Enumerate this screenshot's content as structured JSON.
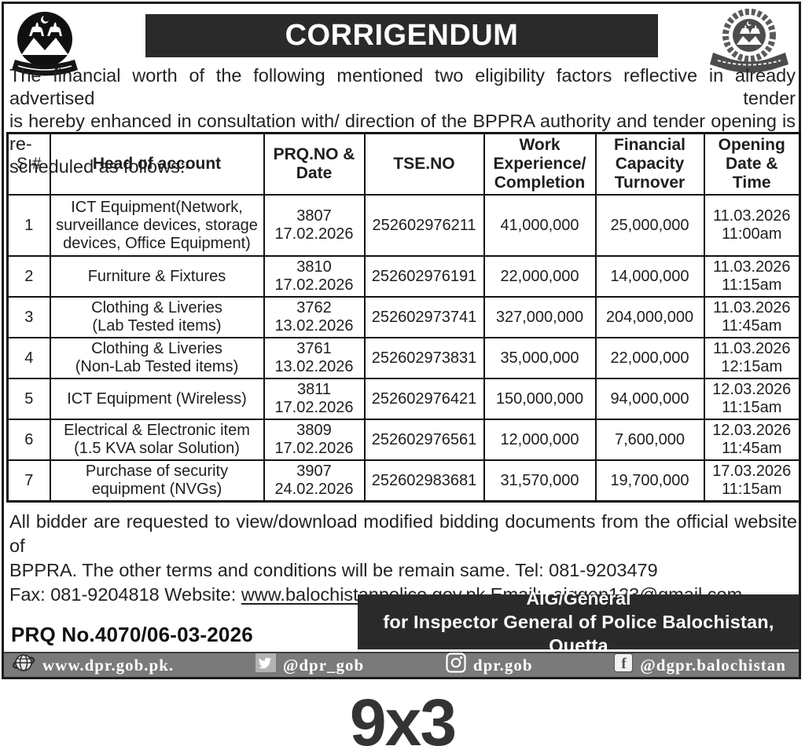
{
  "title": "CORRIGENDUM",
  "intro": {
    "line1": "The financial worth of the following mentioned two eligibility factors reflective in already advertised tender",
    "line2": "is hereby enhanced in consultation with/ direction of the BPPRA authority and tender opening is re-",
    "line3": "scheduled as follows:-"
  },
  "table": {
    "columns": {
      "sno": "S.#",
      "head": "Head of account",
      "prq": "PRQ.NO &\nDate",
      "tse": "TSE.NO",
      "work": "Work\nExperience/\nCompletion",
      "fin": "Financial\nCapacity\nTurnover",
      "open": "Opening\nDate &\nTime"
    },
    "rows": [
      {
        "sno": "1",
        "head": "ICT Equipment(Network,\nsurveillance devices, storage\ndevices, Office Equipment)",
        "prq": "3807\n17.02.2026",
        "tse": "252602976211",
        "work": "41,000,000",
        "fin": "25,000,000",
        "open": "11.03.2026\n11:00am"
      },
      {
        "sno": "2",
        "head": "Furniture & Fixtures",
        "prq": "3810\n17.02.2026",
        "tse": "252602976191",
        "work": "22,000,000",
        "fin": "14,000,000",
        "open": "11.03.2026\n11:15am"
      },
      {
        "sno": "3",
        "head": "Clothing & Liveries\n(Lab Tested items)",
        "prq": "3762\n13.02.2026",
        "tse": "252602973741",
        "work": "327,000,000",
        "fin": "204,000,000",
        "open": "11.03.2026\n11:45am"
      },
      {
        "sno": "4",
        "head": "Clothing & Liveries\n(Non-Lab Tested items)",
        "prq": "3761\n13.02.2026",
        "tse": "252602973831",
        "work": "35,000,000",
        "fin": "22,000,000",
        "open": "11.03.2026\n12:15am"
      },
      {
        "sno": "5",
        "head": "ICT Equipment (Wireless)",
        "prq": "3811\n17.02.2026",
        "tse": "252602976421",
        "work": "150,000,000",
        "fin": "94,000,000",
        "open": "12.03.2026\n11:15am"
      },
      {
        "sno": "6",
        "head": "Electrical & Electronic item\n(1.5 KVA solar Solution)",
        "prq": "3809\n17.02.2026",
        "tse": "252602976561",
        "work": "12,000,000",
        "fin": "7,600,000",
        "open": "12.03.2026\n11:45am"
      },
      {
        "sno": "7",
        "head": "Purchase of security\nequipment (NVGs)",
        "prq": "3907\n24.02.2026",
        "tse": "252602983681",
        "work": "31,570,000",
        "fin": "19,700,000",
        "open": "17.03.2026\n11:15am"
      }
    ]
  },
  "notice": {
    "line1": "All bidder are requested to view/download modified bidding documents from the official website of",
    "line2": "BPPRA. The other terms and conditions will be remain same. Tel: 081-9203479",
    "fax_prefix": "Fax: 081-9204818  Website: ",
    "website": "www.balochistanpolice.gov.pk",
    "email_prefix": "   Email:- ",
    "email": "aiggen123@gmail.com"
  },
  "prq_no": "PRQ No.4070/06-03-2026",
  "signature": {
    "line1": "AIG/General",
    "line2": "for Inspector General of Police Balochistan, Quetta"
  },
  "social_bar": {
    "website": "www.dpr.gob.pk.",
    "twitter": "@dpr_gob",
    "instagram": "dpr.gob",
    "facebook": "@dgpr.balochistan"
  },
  "icons": {
    "left_logo": "police-badge-icon",
    "right_logo": "police-crest-wreath-icon",
    "globe": "globe-icon",
    "twitter": "twitter-bird-icon",
    "instagram": "instagram-icon",
    "facebook": "facebook-icon"
  },
  "size_mark": "9x3",
  "colors": {
    "bar_dark": "#2a2a2a",
    "social_gray": "#7a7a7a",
    "text": "#1e1e1e"
  }
}
